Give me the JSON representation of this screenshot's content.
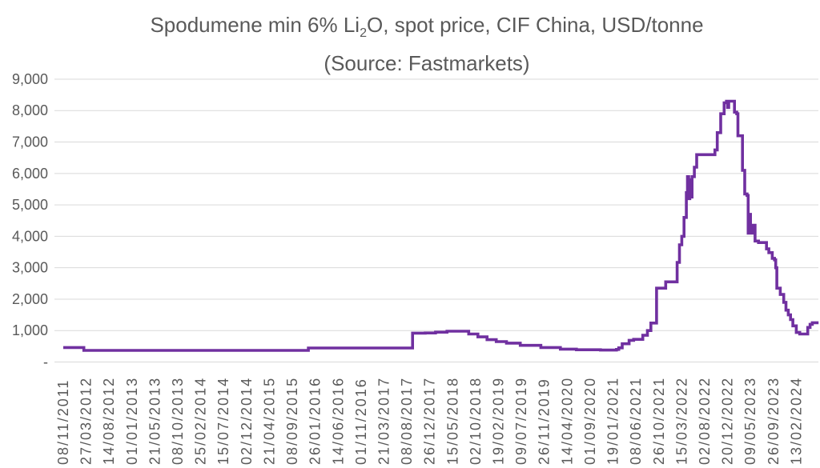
{
  "title": {
    "part1": "Spodumene min 6% Li",
    "subscript": "2",
    "part2": "O, spot price, CIF China, USD/tonne",
    "line2": "(Source: Fastmarkets)"
  },
  "chart_data": {
    "type": "line",
    "title": "Spodumene min 6% Li2O, spot price, CIF China, USD/tonne",
    "subtitle": "(Source: Fastmarkets)",
    "unit": "USD/tonne",
    "line_color": "#7030A0",
    "grid_color": "#D9D9D9",
    "text_color": "#595959",
    "ylim": [
      0,
      9000
    ],
    "grid": "horizontal-only",
    "legend": "none",
    "y_ticks": [
      {
        "label": "9,000",
        "value": 9000
      },
      {
        "label": "8,000",
        "value": 8000
      },
      {
        "label": "7,000",
        "value": 7000
      },
      {
        "label": "6,000",
        "value": 6000
      },
      {
        "label": "5,000",
        "value": 5000
      },
      {
        "label": "4,000",
        "value": 4000
      },
      {
        "label": "3,000",
        "value": 3000
      },
      {
        "label": "2,000",
        "value": 2000
      },
      {
        "label": "1,000",
        "value": 1000
      },
      {
        "label": "-",
        "value": 0
      }
    ],
    "x_tick_labels": [
      "08/11/2011",
      "27/03/2012",
      "14/08/2012",
      "01/01/2013",
      "21/05/2013",
      "08/10/2013",
      "25/02/2014",
      "15/07/2014",
      "02/12/2014",
      "21/04/2015",
      "08/09/2015",
      "26/01/2016",
      "14/06/2016",
      "01/11/2016",
      "21/03/2017",
      "08/08/2017",
      "26/12/2017",
      "15/05/2018",
      "02/10/2018",
      "19/02/2019",
      "09/07/2019",
      "26/11/2019",
      "14/04/2020",
      "01/09/2020",
      "19/01/2021",
      "08/06/2021",
      "26/10/2021",
      "15/03/2022",
      "02/08/2022",
      "20/12/2022",
      "09/05/2023",
      "26/09/2023",
      "13/02/2024"
    ],
    "series": [
      {
        "name": "Spodumene min 6% Li2O spot price, CIF China, USD/tonne",
        "interpolation": "step-after",
        "points": [
          [
            "08/11/2011",
            460
          ],
          [
            "06/03/2012",
            460
          ],
          [
            "13/03/2012",
            370
          ],
          [
            "08/12/2015",
            370
          ],
          [
            "15/12/2015",
            445
          ],
          [
            "05/09/2017",
            445
          ],
          [
            "12/09/2017",
            920
          ],
          [
            "28/11/2017",
            925
          ],
          [
            "30/01/2018",
            950
          ],
          [
            "10/04/2018",
            980
          ],
          [
            "10/07/2018",
            980
          ],
          [
            "21/08/2018",
            890
          ],
          [
            "16/10/2018",
            800
          ],
          [
            "11/12/2018",
            710
          ],
          [
            "05/02/2019",
            650
          ],
          [
            "09/04/2019",
            600
          ],
          [
            "02/07/2019",
            530
          ],
          [
            "05/11/2019",
            460
          ],
          [
            "03/03/2020",
            410
          ],
          [
            "09/06/2020",
            390
          ],
          [
            "03/11/2020",
            380
          ],
          [
            "09/02/2021",
            400
          ],
          [
            "23/02/2021",
            450
          ],
          [
            "16/03/2021",
            580
          ],
          [
            "27/04/2021",
            690
          ],
          [
            "25/05/2021",
            720
          ],
          [
            "20/07/2021",
            850
          ],
          [
            "17/08/2021",
            1000
          ],
          [
            "07/09/2021",
            1240
          ],
          [
            "05/10/2021",
            1240
          ],
          [
            "12/10/2021",
            2350
          ],
          [
            "30/11/2021",
            2350
          ],
          [
            "07/12/2021",
            2550
          ],
          [
            "08/02/2022",
            2550
          ],
          [
            "15/02/2022",
            3170
          ],
          [
            "01/03/2022",
            3730
          ],
          [
            "15/03/2022",
            4000
          ],
          [
            "29/03/2022",
            4600
          ],
          [
            "12/04/2022",
            5390
          ],
          [
            "19/04/2022",
            5900
          ],
          [
            "26/04/2022",
            5200
          ],
          [
            "03/05/2022",
            5800
          ],
          [
            "10/05/2022",
            5250
          ],
          [
            "17/05/2022",
            5900
          ],
          [
            "31/05/2022",
            6200
          ],
          [
            "14/06/2022",
            6600
          ],
          [
            "27/09/2022",
            6600
          ],
          [
            "04/10/2022",
            6750
          ],
          [
            "18/10/2022",
            7300
          ],
          [
            "08/11/2022",
            7900
          ],
          [
            "29/11/2022",
            8250
          ],
          [
            "13/12/2022",
            8300
          ],
          [
            "20/12/2022",
            8100
          ],
          [
            "27/12/2022",
            8300
          ],
          [
            "24/01/2023",
            8300
          ],
          [
            "31/01/2023",
            7950
          ],
          [
            "14/02/2023",
            7900
          ],
          [
            "21/02/2023",
            7200
          ],
          [
            "21/03/2023",
            6100
          ],
          [
            "04/04/2023",
            5350
          ],
          [
            "18/04/2023",
            5300
          ],
          [
            "25/04/2023",
            4100
          ],
          [
            "02/05/2023",
            4700
          ],
          [
            "09/05/2023",
            4100
          ],
          [
            "23/05/2023",
            4350
          ],
          [
            "06/06/2023",
            3850
          ],
          [
            "27/06/2023",
            3800
          ],
          [
            "15/08/2023",
            3600
          ],
          [
            "29/08/2023",
            3480
          ],
          [
            "19/09/2023",
            3300
          ],
          [
            "03/10/2023",
            3250
          ],
          [
            "10/10/2023",
            3000
          ],
          [
            "17/10/2023",
            2350
          ],
          [
            "07/11/2023",
            2150
          ],
          [
            "28/11/2023",
            1900
          ],
          [
            "12/12/2023",
            1650
          ],
          [
            "26/12/2023",
            1500
          ],
          [
            "09/01/2024",
            1350
          ],
          [
            "23/01/2024",
            1150
          ],
          [
            "13/02/2024",
            940
          ],
          [
            "05/03/2024",
            890
          ],
          [
            "09/04/2024",
            890
          ],
          [
            "23/04/2024",
            1100
          ],
          [
            "07/05/2024",
            1200
          ],
          [
            "21/05/2024",
            1250
          ],
          [
            "28/06/2024",
            1250
          ]
        ]
      }
    ]
  }
}
